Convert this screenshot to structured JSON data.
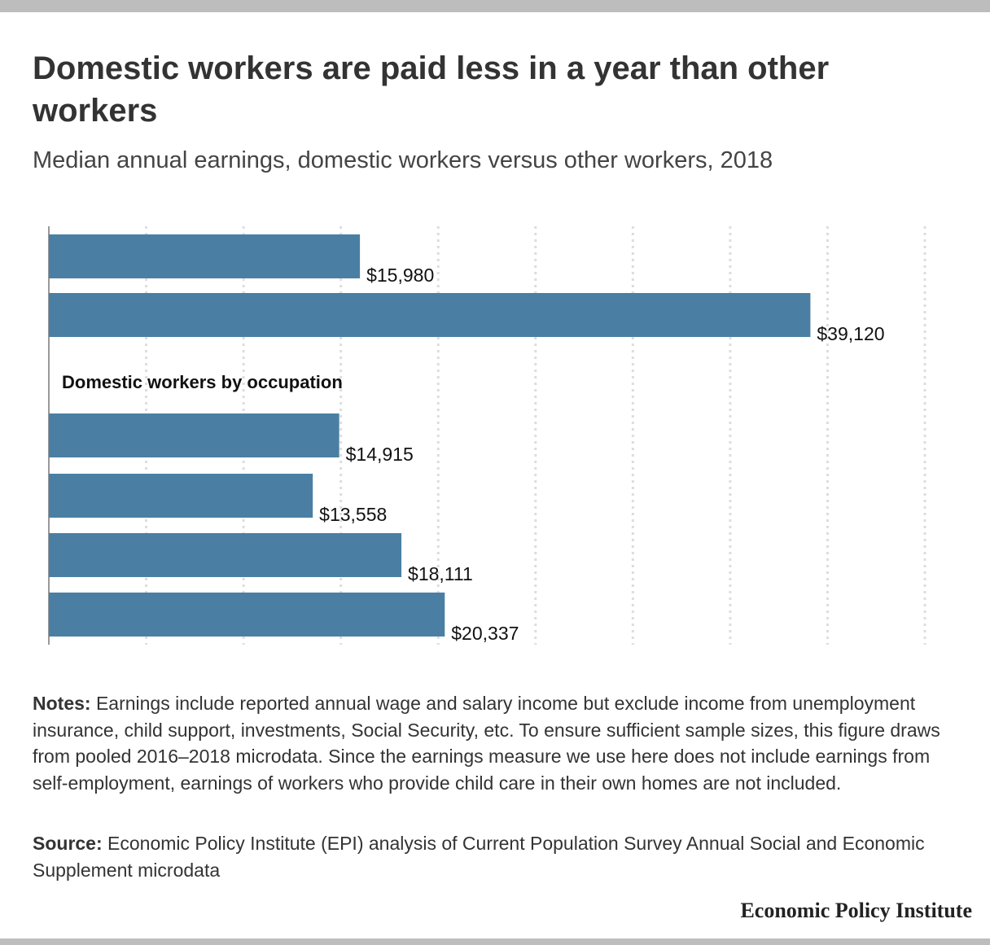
{
  "title": "Domestic workers are paid less in a year than other workers",
  "subtitle": "Median annual earnings, domestic workers versus other workers, 2018",
  "chart_data": {
    "type": "bar",
    "orientation": "horizontal",
    "bar_color": "#4a7fa3",
    "section_label": "Domestic workers by occupation",
    "grid": true,
    "xlim": [
      0,
      45000
    ],
    "values": [
      15980,
      39120,
      14915,
      13558,
      18111,
      20337
    ],
    "value_labels": [
      "$15,980",
      "$39,120",
      "$14,915",
      "$13,558",
      "$18,111",
      "$20,337"
    ]
  },
  "notes": {
    "label": "Notes:",
    "text": " Earnings include reported annual wage and salary income but exclude income from unemployment insurance, child support, investments, Social Security, etc. To ensure sufficient sample sizes, this figure draws from pooled 2016–2018 microdata. Since the earnings measure we use here does not include earnings from self-employment, earnings of workers who provide child care in their own homes are not included."
  },
  "source": {
    "label": "Source:",
    "text": " Economic Policy Institute (EPI) analysis of Current Population Survey Annual Social and Economic Supplement microdata"
  },
  "brand": "Economic Policy Institute"
}
